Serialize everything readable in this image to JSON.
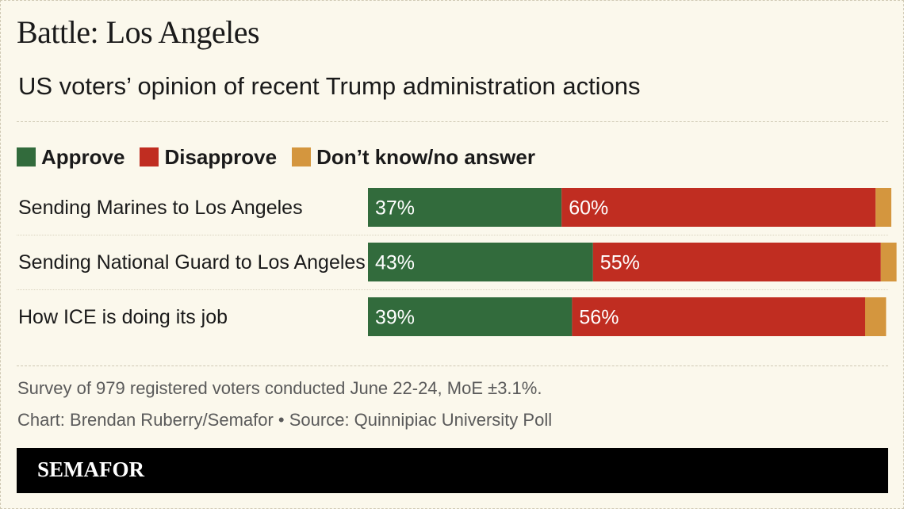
{
  "title": "Battle: Los Angeles",
  "subtitle": "US voters’ opinion of recent Trump administration actions",
  "colors": {
    "approve": "#326b3c",
    "disapprove": "#c02d21",
    "dont_know": "#d4963e",
    "background": "#fbf8ec"
  },
  "chart_data": {
    "type": "bar",
    "orientation": "horizontal",
    "stacked": true,
    "title": "US voters’ opinion of recent Trump administration actions",
    "categories": [
      "Sending Marines to Los Angeles",
      "Sending National Guard to Los Angeles",
      "How ICE is doing its job"
    ],
    "series": [
      {
        "name": "Approve",
        "values": [
          37,
          43,
          39
        ],
        "labels": [
          "37%",
          "43%",
          "39%"
        ]
      },
      {
        "name": "Disapprove",
        "values": [
          60,
          55,
          56
        ],
        "labels": [
          "60%",
          "55%",
          "56%"
        ]
      },
      {
        "name": "Don’t know/no answer",
        "values": [
          3,
          3,
          4
        ]
      }
    ],
    "unit": "%",
    "xlim": [
      0,
      100
    ],
    "legend": [
      "Approve",
      "Disapprove",
      "Don’t know/no answer"
    ],
    "legend_position": "top-left"
  },
  "notes": {
    "survey": "Survey of 979 registered voters conducted June 22-24, MoE ±3.1%.",
    "credit": "Chart: Brendan Ruberry/Semafor • Source: Quinnipiac University Poll"
  },
  "brand": "SEMAFOR"
}
